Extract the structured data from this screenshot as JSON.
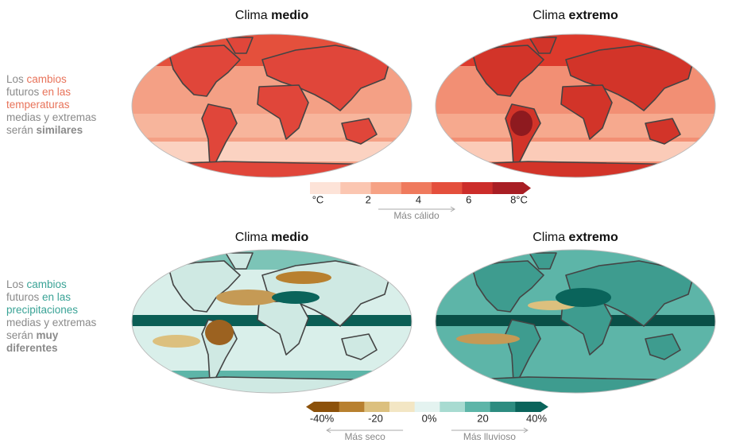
{
  "panels": [
    {
      "description_lines": [
        [
          {
            "text": "Los ",
            "color": "#8a8a8a"
          },
          {
            "text": "cambios",
            "color": "#e8735a"
          }
        ],
        [
          {
            "text": "futuros ",
            "color": "#8a8a8a"
          },
          {
            "text": "en las",
            "color": "#e8735a"
          }
        ],
        [
          {
            "text": "temperaturas",
            "color": "#e8735a"
          }
        ],
        [
          {
            "text": "medias y extremas",
            "color": "#8a8a8a"
          }
        ],
        [
          {
            "text": "serán ",
            "color": "#8a8a8a"
          },
          {
            "text": "similares",
            "color": "#8a8a8a",
            "bold": true
          }
        ]
      ],
      "maps": [
        {
          "title": [
            {
              "text": "Clima "
            },
            {
              "text": "medio",
              "bold": true
            }
          ]
        },
        {
          "title": [
            {
              "text": "Clima "
            },
            {
              "text": "extremo",
              "bold": true
            }
          ]
        }
      ],
      "colorbar": {
        "colors": [
          "#fde3d8",
          "#fbc6b1",
          "#f6a285",
          "#ef7a5d",
          "#e44f3c",
          "#cc2d2a",
          "#a81e24"
        ],
        "labels": [
          "°C",
          "2",
          "4",
          "6",
          "8°C"
        ],
        "notes": [
          {
            "text": "Más cálido",
            "direction": "right"
          }
        ]
      }
    },
    {
      "description_lines": [
        [
          {
            "text": "Los ",
            "color": "#8a8a8a"
          },
          {
            "text": "cambios",
            "color": "#3aa396"
          }
        ],
        [
          {
            "text": "futuros ",
            "color": "#8a8a8a"
          },
          {
            "text": "en las",
            "color": "#3aa396"
          }
        ],
        [
          {
            "text": "precipitaciones",
            "color": "#3aa396"
          }
        ],
        [
          {
            "text": "medias y extremas",
            "color": "#8a8a8a"
          }
        ],
        [
          {
            "text": "serán ",
            "color": "#8a8a8a"
          },
          {
            "text": "muy",
            "color": "#8a8a8a",
            "bold": true
          }
        ],
        [
          {
            "text": "diferentes",
            "color": "#8a8a8a",
            "bold": true
          }
        ]
      ],
      "maps": [
        {
          "title": [
            {
              "text": "Clima "
            },
            {
              "text": "medio",
              "bold": true
            }
          ]
        },
        {
          "title": [
            {
              "text": "Clima "
            },
            {
              "text": "extremo",
              "bold": true
            }
          ]
        }
      ],
      "colorbar": {
        "colors": [
          "#8c510a",
          "#b8802f",
          "#dcc07e",
          "#f3e6c4",
          "#e4f3f0",
          "#a8dbd1",
          "#5db5a8",
          "#2d8c80",
          "#0a645b"
        ],
        "labels": [
          "-40%",
          "-20",
          "0%",
          "20",
          "40%"
        ],
        "notes": [
          {
            "text": "Más seco",
            "direction": "left"
          },
          {
            "text": "Más lluvioso",
            "direction": "right"
          }
        ]
      }
    }
  ]
}
